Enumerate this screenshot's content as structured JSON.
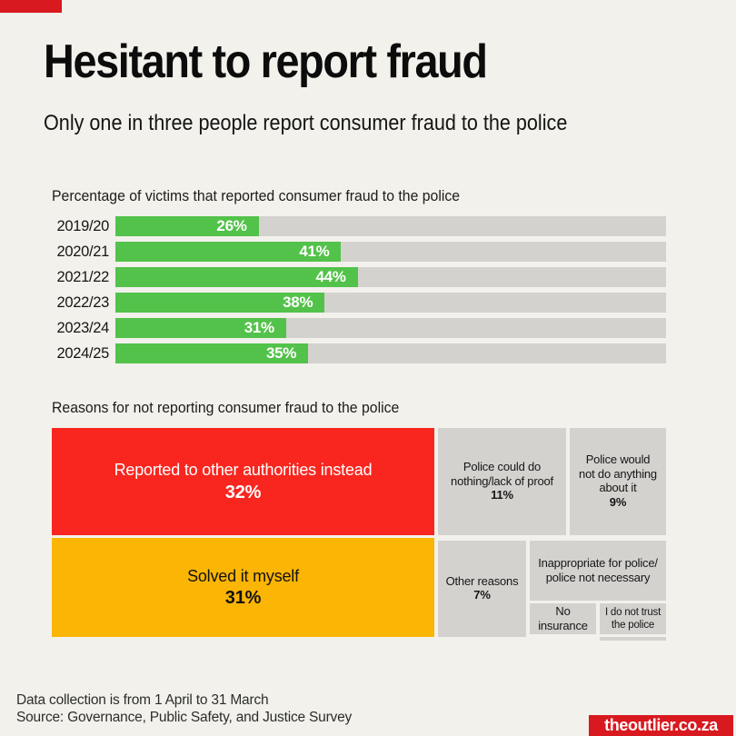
{
  "header": {
    "title": "Hesitant to report fraud",
    "subtitle": "Only one in three people report consumer fraud to the police"
  },
  "colors": {
    "background": "#f2f1ec",
    "brand_red": "#d8191f",
    "treemap_red": "#f8261f",
    "treemap_orange": "#fbb504",
    "bar_green": "#53c24a",
    "track_gray": "#d3d2cf",
    "cell_gray": "#d3d2cf"
  },
  "chart_data": [
    {
      "type": "bar",
      "orientation": "horizontal",
      "title": "Percentage of victims that reported consumer fraud to the police",
      "categories": [
        "2019/20",
        "2020/21",
        "2021/22",
        "2022/23",
        "2023/24",
        "2024/25"
      ],
      "values": [
        26,
        41,
        44,
        38,
        31,
        35
      ],
      "display_values": [
        "26%",
        "41%",
        "44%",
        "38%",
        "31%",
        "35%"
      ],
      "xlim": [
        0,
        100
      ],
      "unit": "%",
      "bar_color": "#53c24a",
      "track_color": "#d3d2cf",
      "grid": false,
      "legend": "none"
    },
    {
      "type": "treemap",
      "title": "Reasons for not reporting consumer fraud to the police",
      "cells": [
        {
          "label": "Reported to other authorities instead",
          "value": "32%",
          "color": "#f8261f",
          "text_color": "#ffffff"
        },
        {
          "label": "Police could do nothing/lack of proof",
          "value": "11%",
          "color": "#d3d2cf",
          "text_color": "#161616"
        },
        {
          "label": "Police would not do anything about it",
          "value": "9%",
          "color": "#d3d2cf",
          "text_color": "#161616"
        },
        {
          "label": "Solved it myself",
          "value": "31%",
          "color": "#fbb504",
          "text_color": "#131313"
        },
        {
          "label": "Other reasons",
          "value": "7%",
          "color": "#d3d2cf",
          "text_color": "#161616"
        },
        {
          "label": "Inappropriate for police/ police not necessary",
          "value": "",
          "color": "#d3d2cf",
          "text_color": "#161616"
        },
        {
          "label": "No insurance",
          "value": "",
          "color": "#d3d2cf",
          "text_color": "#161616"
        },
        {
          "label": "I do not trust the police",
          "value": "",
          "color": "#d3d2cf",
          "text_color": "#161616"
        },
        {
          "label": "",
          "value": "",
          "color": "#d3d2cf",
          "text_color": "#161616"
        }
      ]
    }
  ],
  "footer": {
    "line1": "Data collection is from 1 April to 31 March",
    "line2": "Source: Governance, Public Safety, and Justice Survey",
    "badge": "theoutlier.co.za"
  }
}
